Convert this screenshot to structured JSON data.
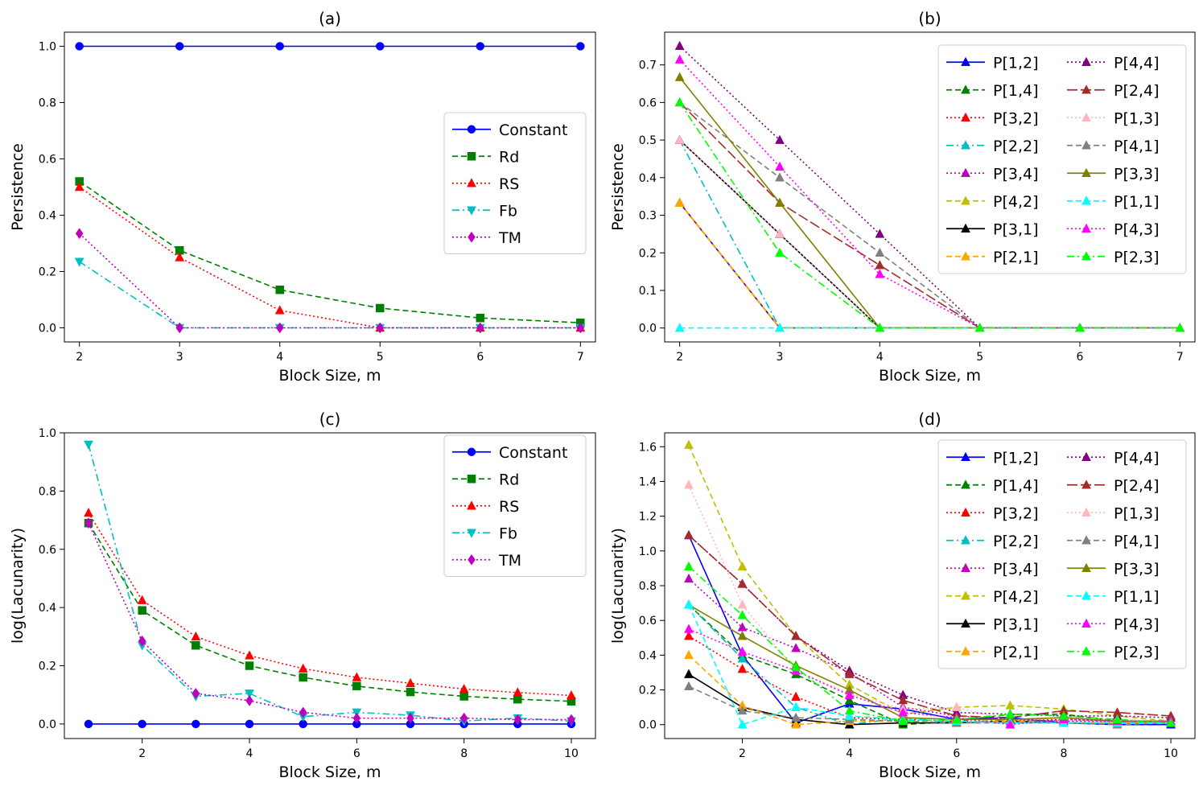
{
  "chart_data": [
    {
      "id": "a",
      "type": "line",
      "title": "(a)",
      "xlabel": "Block Size, m",
      "ylabel": "Persistence",
      "xlim": [
        1.85,
        7.15
      ],
      "ylim": [
        -0.05,
        1.05
      ],
      "xticks": [
        2,
        3,
        4,
        5,
        6,
        7
      ],
      "yticks": [
        0.0,
        0.2,
        0.4,
        0.6,
        0.8,
        1.0
      ],
      "ytick_labels": [
        "0.0",
        "0.2",
        "0.4",
        "0.6",
        "0.8",
        "1.0"
      ],
      "legend_cols": 1,
      "legend_position": "center-right",
      "x": [
        2,
        3,
        4,
        5,
        6,
        7
      ],
      "series": [
        {
          "name": "Constant",
          "color": "#0000ff",
          "dash": "solid",
          "marker": "circle",
          "values": [
            1.0,
            1.0,
            1.0,
            1.0,
            1.0,
            1.0
          ]
        },
        {
          "name": "Rd",
          "color": "#008000",
          "dash": "dashed",
          "marker": "square",
          "values": [
            0.52,
            0.275,
            0.135,
            0.07,
            0.035,
            0.018
          ]
        },
        {
          "name": "RS",
          "color": "#ff0000",
          "dash": "dotted",
          "marker": "triangle-up",
          "values": [
            0.5,
            0.25,
            0.062,
            0.0,
            0.0,
            0.0
          ]
        },
        {
          "name": "Fb",
          "color": "#00bfbf",
          "dash": "dashdot",
          "marker": "triangle-down",
          "values": [
            0.235,
            0.0,
            0.0,
            0.0,
            0.0,
            0.0
          ]
        },
        {
          "name": "TM",
          "color": "#bf00bf",
          "dash": "dotted",
          "marker": "diamond",
          "values": [
            0.335,
            0.0,
            0.0,
            0.0,
            0.0,
            0.0
          ]
        }
      ]
    },
    {
      "id": "b",
      "type": "line",
      "title": "(b)",
      "xlabel": "Block Size, m",
      "ylabel": "Persistence",
      "xlim": [
        1.85,
        7.15
      ],
      "ylim": [
        -0.037,
        0.787
      ],
      "xticks": [
        2,
        3,
        4,
        5,
        6,
        7
      ],
      "yticks": [
        0.0,
        0.1,
        0.2,
        0.3,
        0.4,
        0.5,
        0.6,
        0.7
      ],
      "ytick_labels": [
        "0.0",
        "0.1",
        "0.2",
        "0.3",
        "0.4",
        "0.5",
        "0.6",
        "0.7"
      ],
      "legend_cols": 2,
      "legend_position": "top-right",
      "x": [
        2,
        3,
        4,
        5,
        6,
        7
      ],
      "series": [
        {
          "name": "P[1,2]",
          "color": "#0000ff",
          "dash": "solid",
          "marker": "triangle-up",
          "values": [
            0.333,
            0.0,
            0.0,
            0.0,
            0.0,
            0.0
          ]
        },
        {
          "name": "P[1,4]",
          "color": "#008000",
          "dash": "dashed",
          "marker": "triangle-up",
          "values": [
            0.333,
            0.0,
            0.0,
            0.0,
            0.0,
            0.0
          ]
        },
        {
          "name": "P[3,2]",
          "color": "#ff0000",
          "dash": "dotted",
          "marker": "triangle-up",
          "values": [
            0.333,
            0.0,
            0.0,
            0.0,
            0.0,
            0.0
          ]
        },
        {
          "name": "P[2,2]",
          "color": "#00bfbf",
          "dash": "dashdot",
          "marker": "triangle-up",
          "values": [
            0.5,
            0.0,
            0.0,
            0.0,
            0.0,
            0.0
          ]
        },
        {
          "name": "P[3,4]",
          "color": "#bf00bf",
          "dash": "dotted",
          "marker": "triangle-up",
          "values": [
            0.5,
            0.25,
            0.0,
            0.0,
            0.0,
            0.0
          ]
        },
        {
          "name": "P[4,2]",
          "color": "#bfbf00",
          "dash": "dashed",
          "marker": "triangle-up",
          "values": [
            0.333,
            0.0,
            0.0,
            0.0,
            0.0,
            0.0
          ]
        },
        {
          "name": "P[3,1]",
          "color": "#000000",
          "dash": "solid",
          "marker": "triangle-up",
          "values": [
            0.5,
            0.25,
            0.0,
            0.0,
            0.0,
            0.0
          ]
        },
        {
          "name": "P[2,1]",
          "color": "#ffa500",
          "dash": "dashed",
          "marker": "triangle-up",
          "values": [
            0.333,
            0.0,
            0.0,
            0.0,
            0.0,
            0.0
          ]
        },
        {
          "name": "P[4,4]",
          "color": "#800080",
          "dash": "dotted",
          "marker": "triangle-up",
          "values": [
            0.75,
            0.5,
            0.25,
            0.0,
            0.0,
            0.0
          ]
        },
        {
          "name": "P[2,4]",
          "color": "#a52a2a",
          "dash": "longdash",
          "marker": "triangle-up",
          "values": [
            0.6,
            0.333,
            0.167,
            0.0,
            0.0,
            0.0
          ]
        },
        {
          "name": "P[1,3]",
          "color": "#ffb6c1",
          "dash": "dotted",
          "marker": "triangle-up",
          "values": [
            0.5,
            0.25,
            0.0,
            0.0,
            0.0,
            0.0
          ]
        },
        {
          "name": "P[4,1]",
          "color": "#808080",
          "dash": "dashed",
          "marker": "triangle-up",
          "values": [
            0.6,
            0.4,
            0.2,
            0.0,
            0.0,
            0.0
          ]
        },
        {
          "name": "P[3,3]",
          "color": "#808000",
          "dash": "solid",
          "marker": "triangle-up",
          "values": [
            0.667,
            0.333,
            0.0,
            0.0,
            0.0,
            0.0
          ]
        },
        {
          "name": "P[1,1]",
          "color": "#00ffff",
          "dash": "dashed",
          "marker": "triangle-up",
          "values": [
            0.0,
            0.0,
            0.0,
            0.0,
            0.0,
            0.0
          ]
        },
        {
          "name": "P[4,3]",
          "color": "#ff00ff",
          "dash": "dotted",
          "marker": "triangle-up",
          "values": [
            0.714,
            0.429,
            0.143,
            0.0,
            0.0,
            0.0
          ]
        },
        {
          "name": "P[2,3]",
          "color": "#00ff00",
          "dash": "dashdot",
          "marker": "triangle-up",
          "values": [
            0.6,
            0.2,
            0.0,
            0.0,
            0.0,
            0.0
          ]
        }
      ]
    },
    {
      "id": "c",
      "type": "line",
      "title": "(c)",
      "xlabel": "Block Size, m",
      "ylabel": "log(Lacunarity)",
      "xlim": [
        0.55,
        10.45
      ],
      "ylim": [
        -0.05,
        1.0
      ],
      "xticks": [
        2,
        4,
        6,
        8,
        10
      ],
      "yticks": [
        0.0,
        0.2,
        0.4,
        0.6,
        0.8,
        1.0
      ],
      "ytick_labels": [
        "0.0",
        "0.2",
        "0.4",
        "0.6",
        "0.8",
        "1.0"
      ],
      "legend_cols": 1,
      "legend_position": "top-right",
      "x": [
        1,
        2,
        3,
        4,
        5,
        6,
        7,
        8,
        9,
        10
      ],
      "series": [
        {
          "name": "Constant",
          "color": "#0000ff",
          "dash": "solid",
          "marker": "circle",
          "values": [
            0,
            0,
            0,
            0,
            0,
            0,
            0,
            0,
            0,
            0
          ]
        },
        {
          "name": "Rd",
          "color": "#008000",
          "dash": "dashed",
          "marker": "square",
          "values": [
            0.69,
            0.39,
            0.27,
            0.2,
            0.16,
            0.13,
            0.11,
            0.095,
            0.085,
            0.078
          ]
        },
        {
          "name": "RS",
          "color": "#ff0000",
          "dash": "dotted",
          "marker": "triangle-up",
          "values": [
            0.725,
            0.425,
            0.3,
            0.235,
            0.19,
            0.16,
            0.14,
            0.12,
            0.108,
            0.098
          ]
        },
        {
          "name": "Fb",
          "color": "#00bfbf",
          "dash": "dashdot",
          "marker": "triangle-down",
          "values": [
            0.96,
            0.27,
            0.095,
            0.105,
            0.025,
            0.04,
            0.03,
            0.01,
            0.02,
            0.01
          ]
        },
        {
          "name": "TM",
          "color": "#bf00bf",
          "dash": "dotted",
          "marker": "diamond",
          "values": [
            0.69,
            0.285,
            0.105,
            0.08,
            0.04,
            0.02,
            0.02,
            0.02,
            0.015,
            0.015
          ]
        }
      ]
    },
    {
      "id": "d",
      "type": "line",
      "title": "(d)",
      "xlabel": "Block Size, m",
      "ylabel": "log(Lacunarity)",
      "xlim": [
        0.55,
        10.45
      ],
      "ylim": [
        -0.08,
        1.68
      ],
      "xticks": [
        2,
        4,
        6,
        8,
        10
      ],
      "yticks": [
        0.0,
        0.2,
        0.4,
        0.6,
        0.8,
        1.0,
        1.2,
        1.4,
        1.6
      ],
      "ytick_labels": [
        "0.0",
        "0.2",
        "0.4",
        "0.6",
        "0.8",
        "1.0",
        "1.2",
        "1.4",
        "1.6"
      ],
      "legend_cols": 2,
      "legend_position": "top-right",
      "x": [
        1,
        2,
        3,
        4,
        5,
        6,
        7,
        8,
        9,
        10
      ],
      "series": [
        {
          "name": "P[1,2]",
          "color": "#0000ff",
          "dash": "solid",
          "marker": "triangle-up",
          "values": [
            1.09,
            0.4,
            0.01,
            0.12,
            0.09,
            0.03,
            0.04,
            0.01,
            0.0,
            0.0
          ]
        },
        {
          "name": "P[1,4]",
          "color": "#008000",
          "dash": "dashed",
          "marker": "triangle-up",
          "values": [
            0.69,
            0.4,
            0.29,
            0.14,
            0.0,
            0.02,
            0.06,
            0.06,
            0.02,
            0.02
          ]
        },
        {
          "name": "P[3,2]",
          "color": "#ff0000",
          "dash": "dotted",
          "marker": "triangle-up",
          "values": [
            0.51,
            0.32,
            0.16,
            0.04,
            0.03,
            0.02,
            0.02,
            0.03,
            0.02,
            0.02
          ]
        },
        {
          "name": "P[2,2]",
          "color": "#00bfbf",
          "dash": "dashdot",
          "marker": "triangle-up",
          "values": [
            0.69,
            0.38,
            0.1,
            0.0,
            0.04,
            0.01,
            0.03,
            0.01,
            0.01,
            0.01
          ]
        },
        {
          "name": "P[3,4]",
          "color": "#bf00bf",
          "dash": "dotted",
          "marker": "triangle-up",
          "values": [
            0.84,
            0.56,
            0.44,
            0.3,
            0.1,
            0.05,
            0.03,
            0.02,
            0.02,
            0.02
          ]
        },
        {
          "name": "P[4,2]",
          "color": "#bfbf00",
          "dash": "dashed",
          "marker": "triangle-up",
          "values": [
            1.61,
            0.91,
            0.51,
            0.23,
            0.06,
            0.1,
            0.11,
            0.09,
            0.05,
            0.02
          ]
        },
        {
          "name": "P[3,1]",
          "color": "#000000",
          "dash": "solid",
          "marker": "triangle-up",
          "values": [
            0.29,
            0.1,
            0.03,
            0.0,
            0.01,
            0.01,
            0.02,
            0.01,
            0.01,
            0.01
          ]
        },
        {
          "name": "P[2,1]",
          "color": "#ffa500",
          "dash": "dashed",
          "marker": "triangle-up",
          "values": [
            0.4,
            0.11,
            0.0,
            0.02,
            0.02,
            0.01,
            0.02,
            0.01,
            0.01,
            0.01
          ]
        },
        {
          "name": "P[4,4]",
          "color": "#800080",
          "dash": "dotted",
          "marker": "triangle-up",
          "values": [
            1.09,
            0.81,
            0.51,
            0.31,
            0.17,
            0.07,
            0.06,
            0.05,
            0.05,
            0.04
          ]
        },
        {
          "name": "P[2,4]",
          "color": "#a52a2a",
          "dash": "longdash",
          "marker": "triangle-up",
          "values": [
            1.09,
            0.81,
            0.51,
            0.29,
            0.14,
            0.05,
            0.04,
            0.08,
            0.07,
            0.05
          ]
        },
        {
          "name": "P[1,3]",
          "color": "#ffb6c1",
          "dash": "dotted",
          "marker": "triangle-up",
          "values": [
            1.38,
            0.69,
            0.31,
            0.18,
            0.09,
            0.1,
            0.02,
            0.04,
            0.03,
            0.02
          ]
        },
        {
          "name": "P[4,1]",
          "color": "#808080",
          "dash": "dashed",
          "marker": "triangle-up",
          "values": [
            0.22,
            0.08,
            0.04,
            0.03,
            0.02,
            0.01,
            0.01,
            0.01,
            0.0,
            0.01
          ]
        },
        {
          "name": "P[3,3]",
          "color": "#808000",
          "dash": "solid",
          "marker": "triangle-up",
          "values": [
            0.69,
            0.51,
            0.34,
            0.2,
            0.04,
            0.03,
            0.03,
            0.04,
            0.02,
            0.02
          ]
        },
        {
          "name": "P[1,1]",
          "color": "#00ffff",
          "dash": "dashed",
          "marker": "triangle-up",
          "values": [
            0.69,
            0.0,
            0.1,
            0.05,
            0.03,
            0.02,
            0.01,
            0.01,
            0.01,
            0.01
          ]
        },
        {
          "name": "P[4,3]",
          "color": "#ff00ff",
          "dash": "dotted",
          "marker": "triangle-up",
          "values": [
            0.55,
            0.42,
            0.31,
            0.17,
            0.07,
            0.04,
            0.0,
            0.03,
            0.02,
            0.02
          ]
        },
        {
          "name": "P[2,3]",
          "color": "#00ff00",
          "dash": "dashdot",
          "marker": "triangle-up",
          "values": [
            0.91,
            0.63,
            0.33,
            0.08,
            0.02,
            0.03,
            0.06,
            0.05,
            0.03,
            0.01
          ]
        }
      ]
    }
  ]
}
